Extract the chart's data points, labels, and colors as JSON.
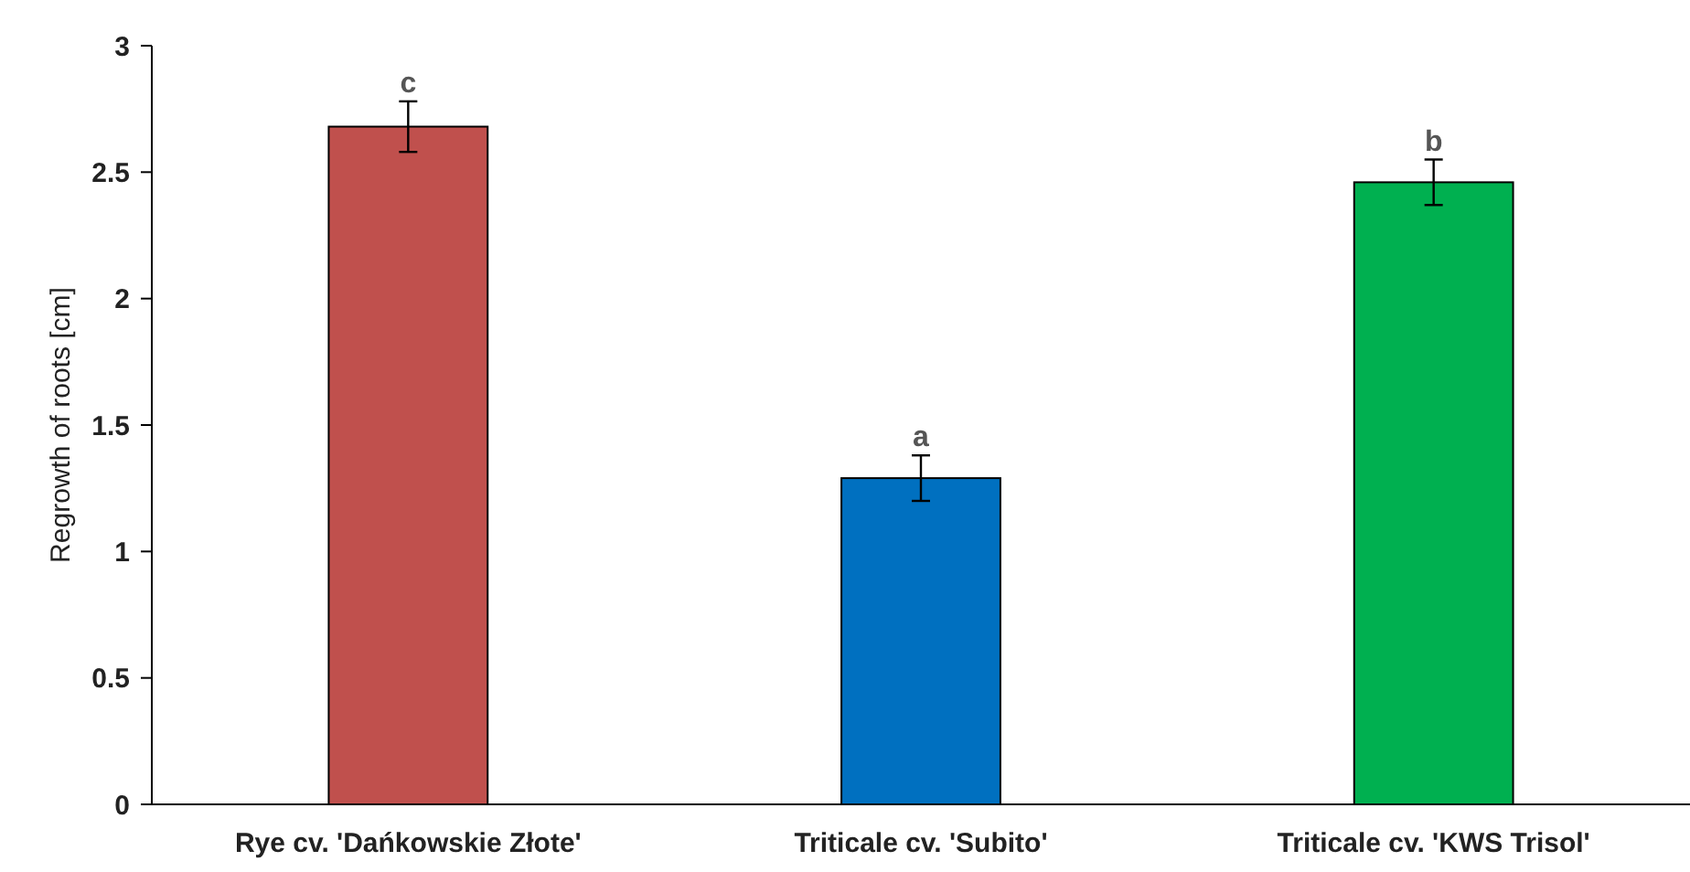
{
  "chart_data": {
    "type": "bar",
    "ylabel": "Regrowth of roots  [cm]",
    "categories": [
      "Rye cv. 'Dańkowskie Złote'",
      "Triticale cv. 'Subito'",
      "Triticale cv. 'KWS Trisol'"
    ],
    "values": [
      2.68,
      1.29,
      2.46
    ],
    "colors": [
      "#c0504d",
      "#0070c0",
      "#00b050"
    ],
    "errors": [
      0.1,
      0.09,
      0.09
    ],
    "ylim": [
      0,
      3
    ],
    "yticks": [
      0,
      0.5,
      1,
      1.5,
      2,
      2.5,
      3
    ],
    "grid": false,
    "annotations": [
      {
        "text": "c",
        "x": "Rye cv. 'Dańkowskie Złote'",
        "y": 2.78
      },
      {
        "text": "a",
        "x": "Triticale cv. 'Subito'",
        "y": 1.38
      },
      {
        "text": "b",
        "x": "Triticale cv. 'KWS Trisol'",
        "y": 2.55
      }
    ]
  }
}
